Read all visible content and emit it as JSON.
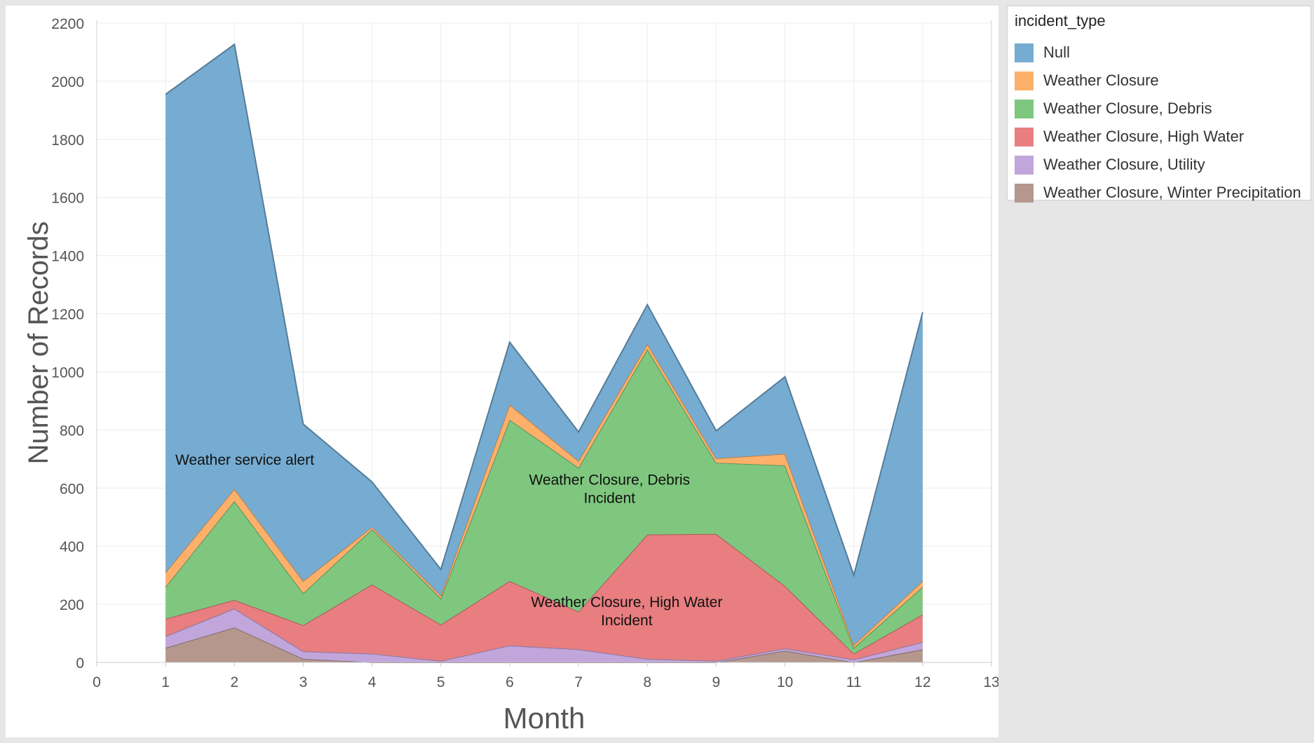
{
  "chart_data": {
    "type": "area",
    "stacked": true,
    "xlabel": "Month",
    "ylabel": "Number of Records",
    "xlim": [
      0,
      13
    ],
    "ylim": [
      0,
      2200
    ],
    "xticks": [
      0,
      1,
      2,
      3,
      4,
      5,
      6,
      7,
      8,
      9,
      10,
      11,
      12,
      13
    ],
    "yticks": [
      0,
      200,
      400,
      600,
      800,
      1000,
      1200,
      1400,
      1600,
      1800,
      2000,
      2200
    ],
    "grid": true,
    "legend_title": "incident_type",
    "legend_position": "right",
    "x": [
      1,
      2,
      3,
      4,
      5,
      6,
      7,
      8,
      9,
      10,
      11,
      12
    ],
    "series": [
      {
        "name": "Weather Closure, Winter Precipitation",
        "color": "#b5978e",
        "values": [
          50,
          120,
          12,
          0,
          0,
          0,
          0,
          0,
          0,
          40,
          0,
          45
        ]
      },
      {
        "name": "Weather Closure, Utility",
        "color": "#c1a6dc",
        "values": [
          40,
          65,
          26,
          30,
          5,
          58,
          45,
          12,
          5,
          8,
          10,
          25
        ]
      },
      {
        "name": "Weather Closure, High Water",
        "color": "#e87e80",
        "values": [
          60,
          30,
          90,
          238,
          125,
          222,
          130,
          428,
          437,
          215,
          20,
          95
        ]
      },
      {
        "name": "Weather Closure, Debris",
        "color": "#7fc77f",
        "values": [
          110,
          340,
          110,
          190,
          90,
          555,
          495,
          638,
          245,
          415,
          20,
          95
        ]
      },
      {
        "name": "Weather Closure",
        "color": "#fdb06a",
        "values": [
          50,
          42,
          42,
          8,
          10,
          52,
          23,
          18,
          15,
          40,
          10,
          20
        ]
      },
      {
        "name": "Null",
        "color": "#76acd2",
        "values": [
          1645,
          1530,
          540,
          155,
          90,
          215,
          100,
          135,
          95,
          265,
          240,
          925
        ]
      }
    ],
    "annotations": [
      {
        "text": [
          "Weather service alert"
        ],
        "x": 2.15,
        "y": 680
      },
      {
        "text": [
          "Weather Closure, Debris",
          "Incident"
        ],
        "x": 7.45,
        "y": 612
      },
      {
        "text": [
          "Weather Closure, High Water",
          "Incident"
        ],
        "x": 7.7,
        "y": 190
      }
    ]
  }
}
